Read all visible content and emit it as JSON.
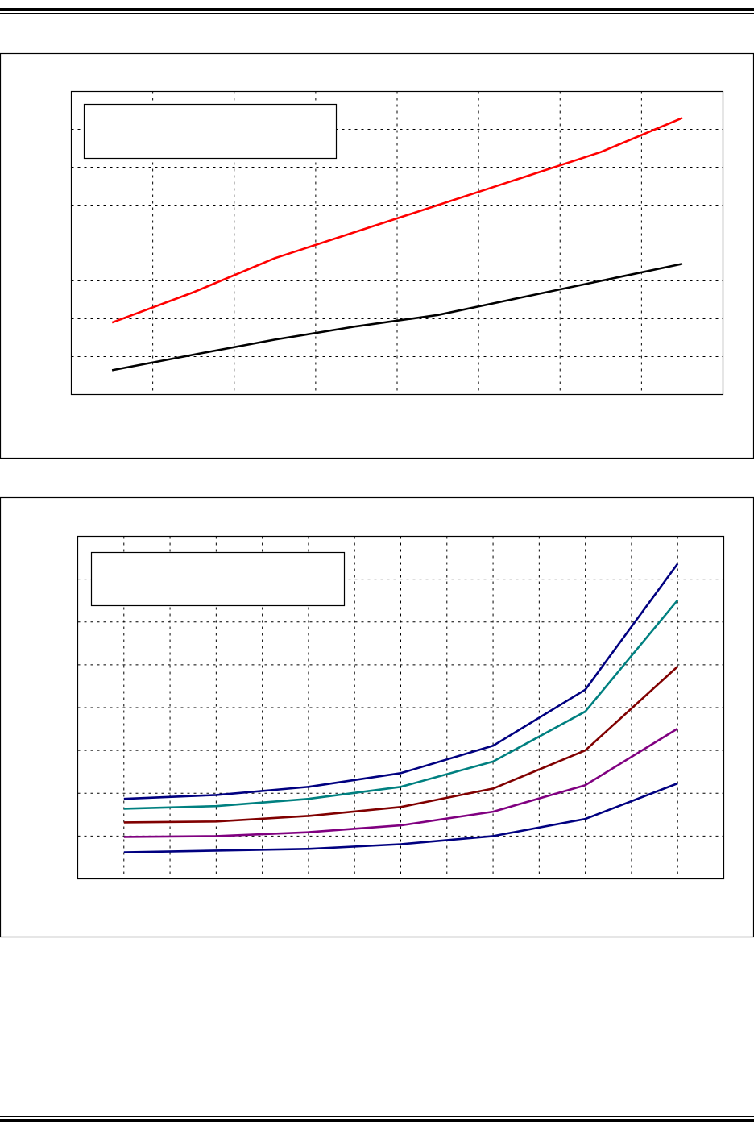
{
  "chart_data": [
    {
      "type": "line",
      "title": "",
      "xlabel": "",
      "ylabel": "",
      "xlim": [
        0,
        8
      ],
      "ylim": [
        0,
        8
      ],
      "grid": true,
      "legend": "top-left",
      "x": [
        0.5,
        1.5,
        2.5,
        3.5,
        4.5,
        5.5,
        6.5,
        7.5
      ],
      "series": [
        {
          "color": "#ff0000",
          "values": [
            1.9,
            2.7,
            3.6,
            4.3,
            5.0,
            5.7,
            6.4,
            7.3
          ]
        },
        {
          "color": "#000000",
          "values": [
            0.64,
            1.05,
            1.45,
            1.8,
            2.1,
            2.55,
            3.0,
            3.45
          ]
        }
      ]
    },
    {
      "type": "line",
      "title": "",
      "xlabel": "",
      "ylabel": "",
      "xlim": [
        0,
        14
      ],
      "ylim": [
        0,
        8
      ],
      "grid": true,
      "legend": "top-left",
      "x": [
        1,
        3,
        5,
        7,
        9,
        11,
        13
      ],
      "series": [
        {
          "color": "#000080",
          "values": [
            1.87,
            1.96,
            2.15,
            2.47,
            3.11,
            4.42,
            7.36
          ]
        },
        {
          "color": "#008080",
          "values": [
            1.64,
            1.7,
            1.87,
            2.15,
            2.74,
            3.91,
            6.51
          ]
        },
        {
          "color": "#800000",
          "values": [
            1.32,
            1.34,
            1.47,
            1.68,
            2.11,
            3.0,
            4.96
          ]
        },
        {
          "color": "#800080",
          "values": [
            0.98,
            1.0,
            1.09,
            1.25,
            1.57,
            2.19,
            3.51
          ]
        },
        {
          "color": "#000080",
          "values": [
            0.62,
            0.66,
            0.7,
            0.81,
            1.0,
            1.4,
            2.23
          ]
        }
      ]
    }
  ]
}
